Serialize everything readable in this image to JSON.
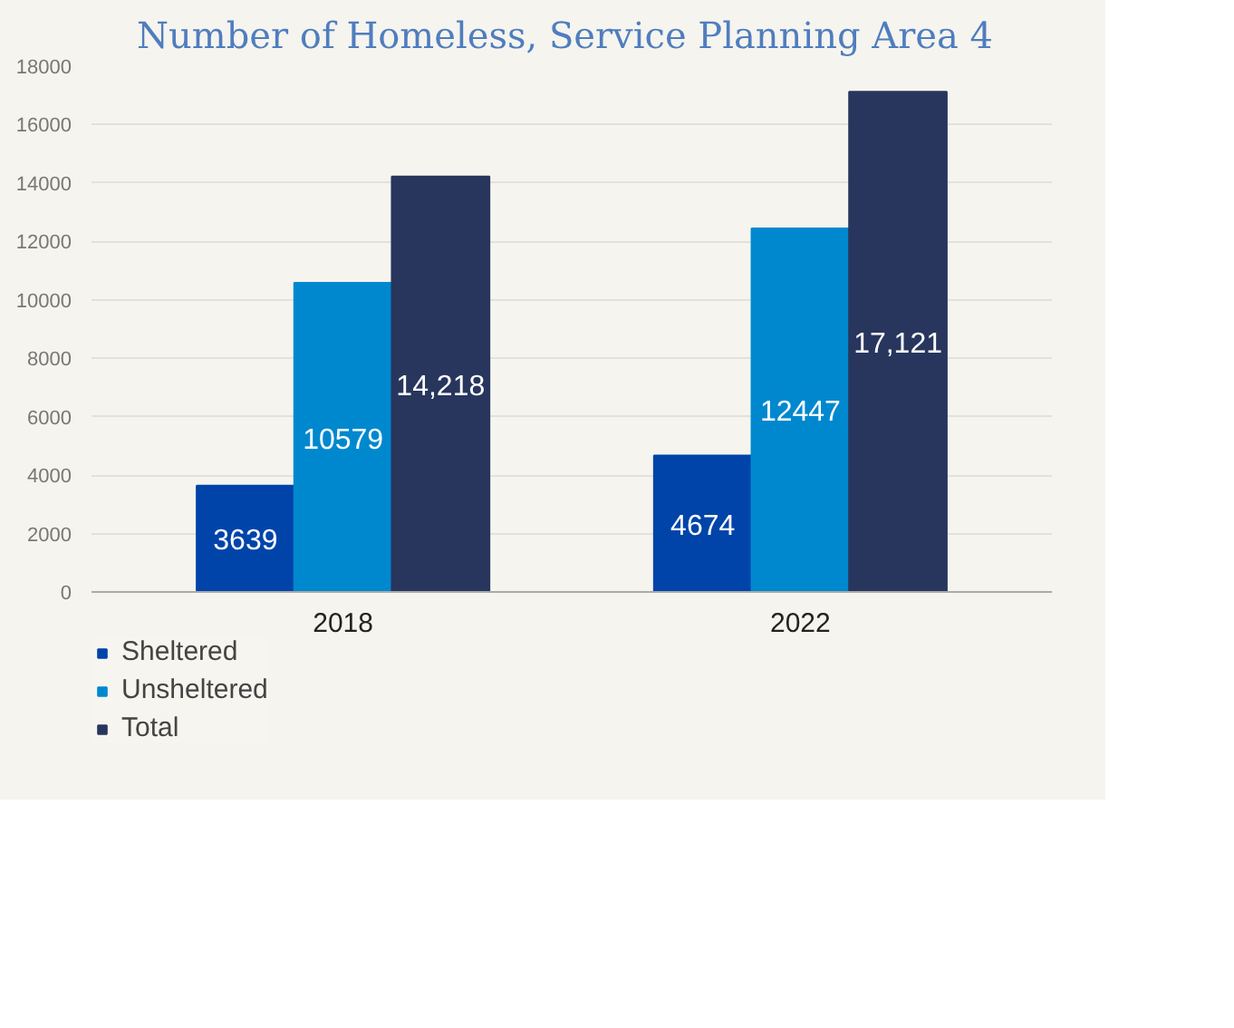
{
  "chart_data": {
    "type": "bar",
    "title": "Number of Homeless, Service Planning Area 4",
    "categories": [
      "2018",
      "2022"
    ],
    "series": [
      {
        "name": "Sheltered",
        "color": "#0044aa",
        "values": [
          3639,
          4674
        ],
        "value_labels": [
          "3639",
          "4674"
        ]
      },
      {
        "name": "Unsheltered",
        "color": "#0088cf",
        "values": [
          10579,
          12447
        ],
        "value_labels": [
          "10579",
          "12447"
        ]
      },
      {
        "name": "Total",
        "color": "#28365e",
        "values": [
          14218,
          17121
        ],
        "value_labels": [
          "14,218",
          "17,121"
        ]
      }
    ],
    "ylim": [
      0,
      18000
    ],
    "yticks": [
      0,
      2000,
      4000,
      6000,
      8000,
      10000,
      12000,
      14000,
      16000,
      18000
    ],
    "grid": "y",
    "legend": "bottom left"
  }
}
